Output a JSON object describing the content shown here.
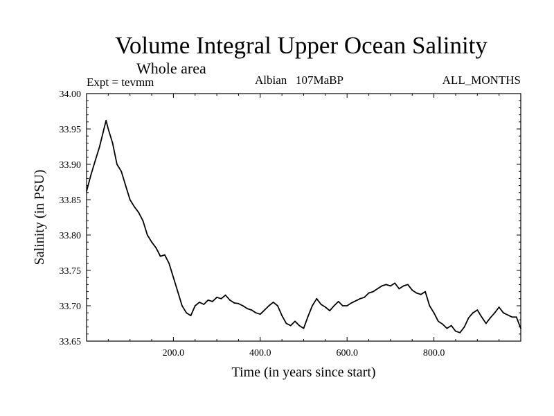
{
  "chart_data": {
    "type": "line",
    "title": "Volume Integral Upper Ocean Salinity",
    "subtitle": "Whole area",
    "left_label": "Expt = tevmm",
    "center_label": "Albian   107MaBP",
    "right_label": "ALL_MONTHS",
    "xlabel": "Time (in years since start)",
    "ylabel": "Salinity (in PSU)",
    "xlim": [
      0,
      1000
    ],
    "ylim": [
      33.65,
      34.0
    ],
    "xticks": [
      200,
      400,
      600,
      800
    ],
    "xtick_labels": [
      "200.0",
      "400.0",
      "600.0",
      "800.0"
    ],
    "yticks": [
      33.65,
      33.7,
      33.75,
      33.8,
      33.85,
      33.9,
      33.95,
      34.0
    ],
    "ytick_labels": [
      "33.65",
      "33.70",
      "33.75",
      "33.80",
      "33.85",
      "33.90",
      "33.95",
      "34.00"
    ],
    "grid": false,
    "series": [
      {
        "name": "salinity",
        "color": "#000000",
        "x": [
          0,
          10,
          20,
          30,
          40,
          45,
          50,
          60,
          70,
          80,
          90,
          100,
          110,
          120,
          130,
          140,
          150,
          160,
          170,
          180,
          190,
          200,
          210,
          220,
          230,
          240,
          250,
          260,
          270,
          280,
          290,
          300,
          310,
          320,
          330,
          340,
          350,
          360,
          370,
          380,
          390,
          400,
          410,
          420,
          430,
          440,
          450,
          460,
          470,
          480,
          490,
          500,
          510,
          520,
          530,
          540,
          550,
          560,
          570,
          580,
          590,
          600,
          610,
          620,
          630,
          640,
          650,
          660,
          670,
          680,
          690,
          700,
          710,
          720,
          730,
          740,
          750,
          760,
          770,
          780,
          790,
          800,
          810,
          820,
          830,
          840,
          850,
          860,
          870,
          880,
          890,
          900,
          910,
          920,
          930,
          940,
          950,
          960,
          970,
          980,
          990,
          1000
        ],
        "y": [
          33.862,
          33.885,
          33.905,
          33.925,
          33.95,
          33.962,
          33.95,
          33.93,
          33.9,
          33.89,
          33.87,
          33.85,
          33.84,
          33.832,
          33.82,
          33.8,
          33.79,
          33.782,
          33.77,
          33.772,
          33.76,
          33.74,
          33.72,
          33.7,
          33.69,
          33.686,
          33.7,
          33.705,
          33.702,
          33.708,
          33.706,
          33.712,
          33.71,
          33.715,
          33.708,
          33.704,
          33.703,
          33.7,
          33.696,
          33.694,
          33.69,
          33.688,
          33.694,
          33.7,
          33.705,
          33.7,
          33.686,
          33.675,
          33.672,
          33.678,
          33.672,
          33.668,
          33.685,
          33.7,
          33.71,
          33.702,
          33.698,
          33.693,
          33.7,
          33.706,
          33.7,
          33.7,
          33.704,
          33.707,
          33.71,
          33.712,
          33.718,
          33.72,
          33.724,
          33.728,
          33.73,
          33.728,
          33.732,
          33.724,
          33.728,
          33.73,
          33.722,
          33.718,
          33.716,
          33.72,
          33.7,
          33.69,
          33.678,
          33.674,
          33.668,
          33.672,
          33.664,
          33.662,
          33.67,
          33.683,
          33.69,
          33.694,
          33.684,
          33.675,
          33.683,
          33.69,
          33.698,
          33.69,
          33.687,
          33.684,
          33.684,
          33.668
        ]
      }
    ]
  }
}
